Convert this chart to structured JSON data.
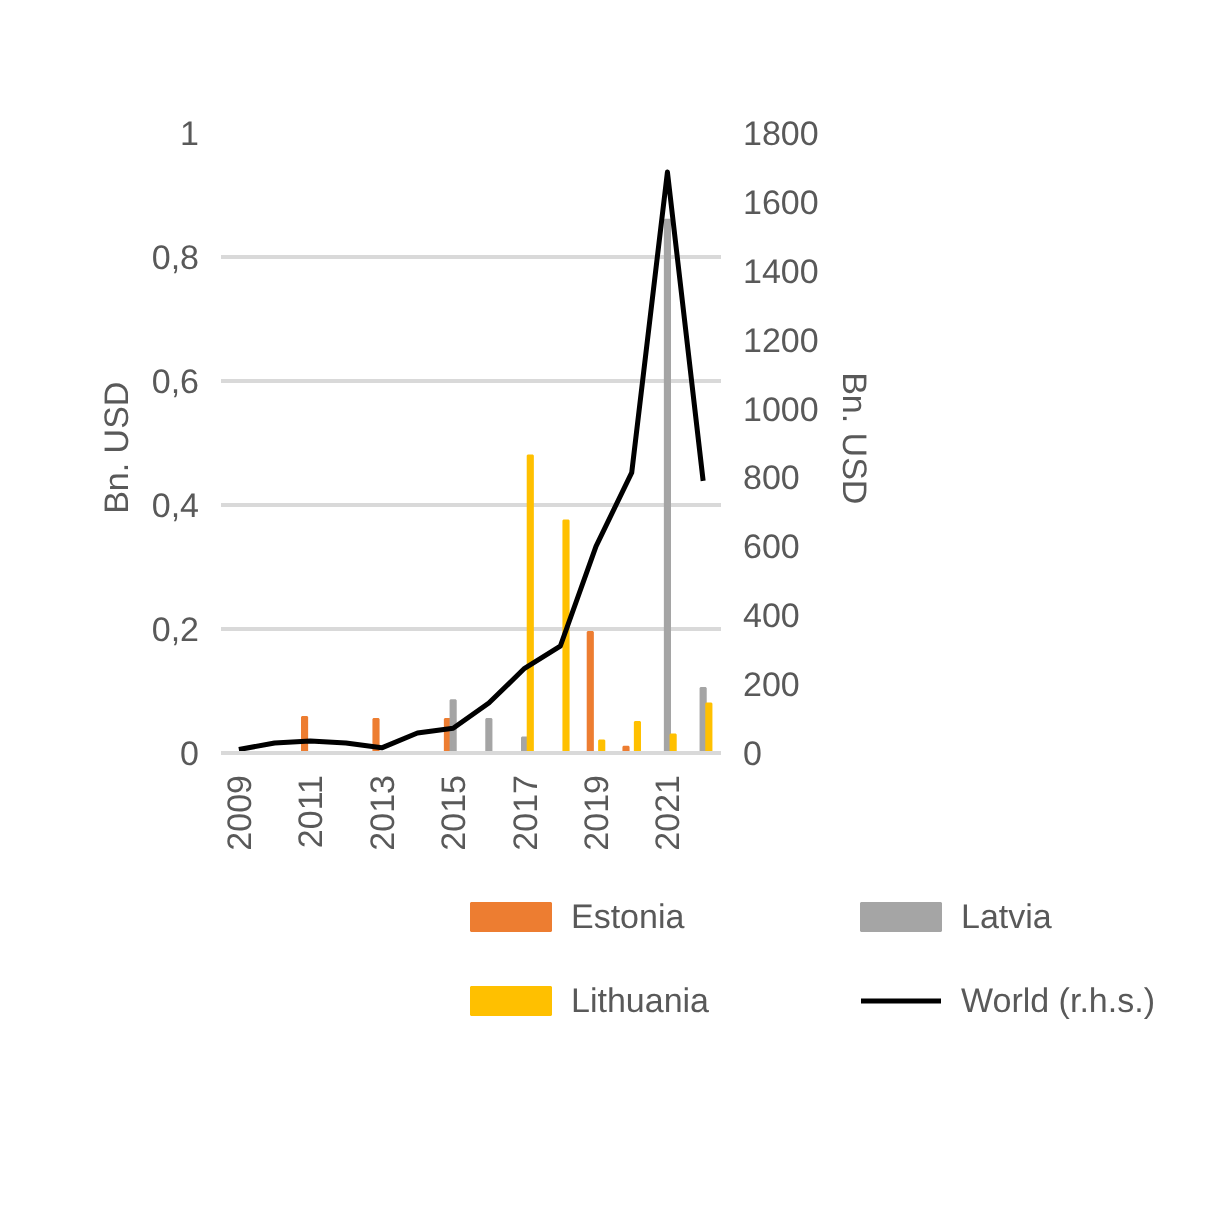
{
  "chart_data": {
    "type": "bar",
    "categories": [
      "2009",
      null,
      "2011",
      null,
      "2013",
      null,
      "2015",
      null,
      "2017",
      null,
      "2019",
      null,
      "2021",
      null
    ],
    "ylabel": "Bn.  USD",
    "y2label": "Bn.  USD",
    "ylim": [
      0,
      1
    ],
    "yticks": [
      0,
      {
        "value": 0.2,
        "label": "0,2"
      },
      {
        "value": 0.4,
        "label": "0,4"
      },
      {
        "value": 0.6,
        "label": "0,6"
      },
      {
        "value": 0.8,
        "label": "0,8"
      },
      1
    ],
    "y2lim": [
      0,
      1800
    ],
    "y2ticks": [
      0,
      200,
      400,
      600,
      800,
      1000,
      1200,
      1400,
      1600,
      1800
    ],
    "grid": "y",
    "legend": "bottom",
    "series": [
      {
        "name": "Estonia",
        "color": "#ed7d31",
        "values": [
          null,
          null,
          0.058,
          null,
          0.055,
          null,
          0.055,
          null,
          null,
          null,
          0.195,
          0.01,
          null,
          null
        ]
      },
      {
        "name": "Latvia",
        "color": "#a5a5a5",
        "values": [
          null,
          null,
          null,
          null,
          null,
          null,
          0.085,
          0.055,
          0.025,
          null,
          null,
          null,
          0.86,
          0.105
        ]
      },
      {
        "name": "Lithuania",
        "color": "#ffc000",
        "values": [
          null,
          null,
          null,
          null,
          null,
          null,
          null,
          null,
          0.48,
          0.375,
          0.02,
          0.05,
          0.03,
          0.08
        ]
      },
      {
        "name": "World (r.h.s.)",
        "type": "line",
        "axis": "y2",
        "color": "#000000",
        "values": [
          10,
          29,
          35,
          29,
          15,
          58,
          72,
          145,
          246,
          310,
          600,
          814,
          1687,
          790
        ]
      }
    ]
  }
}
